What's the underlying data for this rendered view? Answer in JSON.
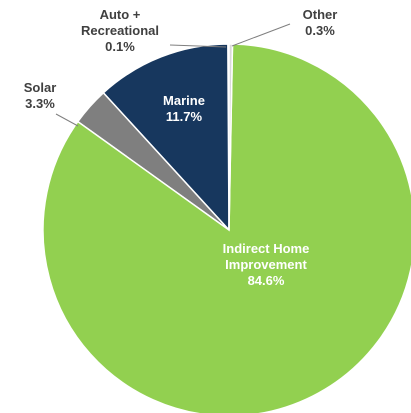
{
  "chart_data": {
    "type": "pie",
    "categories": [
      "Other",
      "Indirect Home Improvement",
      "Solar",
      "Marine",
      "Auto + Recreational"
    ],
    "values": [
      0.3,
      84.6,
      3.3,
      11.7,
      0.1
    ],
    "value_labels": [
      "0.3%",
      "84.6%",
      "3.3%",
      "11.7%",
      "0.1%"
    ],
    "colors": [
      "#d9d9d9",
      "#92d050",
      "#7f7f7f",
      "#17375e",
      "#4472c4"
    ]
  }
}
